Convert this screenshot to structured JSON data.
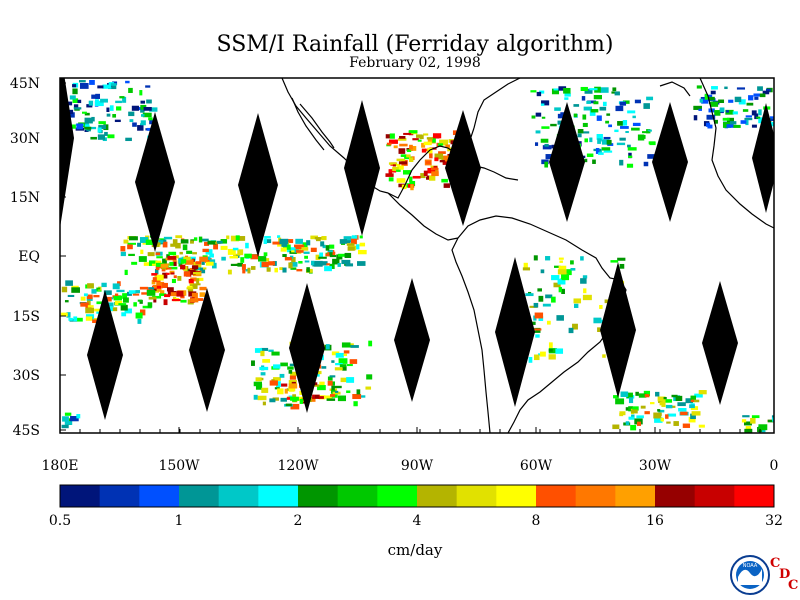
{
  "title": "SSM/I Rainfall (Ferriday algorithm)",
  "subtitle": "February 02, 1998",
  "lat_labels": [
    "45N",
    "30N",
    "15N",
    "EQ",
    "15S",
    "30S",
    "45S"
  ],
  "lon_labels": [
    "180E",
    "150W",
    "120W",
    "90W",
    "60W",
    "30W",
    "0"
  ],
  "colorbar": {
    "colors": [
      "#00157a",
      "#0032b4",
      "#0050ff",
      "#009696",
      "#00c8c8",
      "#00ffff",
      "#009600",
      "#00c800",
      "#00ff00",
      "#b4b400",
      "#e1e100",
      "#ffff00",
      "#ff5000",
      "#ff7800",
      "#ffa000",
      "#960000",
      "#c80000",
      "#ff0000"
    ],
    "tick_labels": [
      "0.5",
      "1",
      "2",
      "4",
      "8",
      "16",
      "32"
    ],
    "units": "cm/day"
  },
  "logo": {
    "name": "noaa-logo",
    "text": "NOAA"
  },
  "cdc": {
    "c1": "C",
    "d": "D",
    "c2": "C"
  }
}
